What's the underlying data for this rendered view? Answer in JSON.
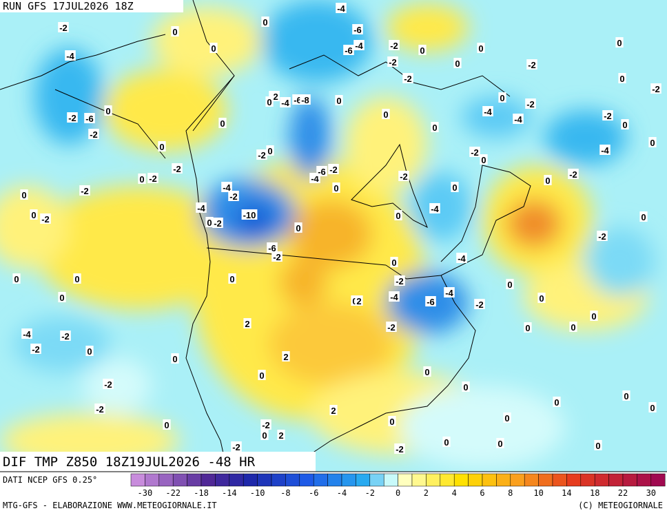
{
  "header": {
    "run": "RUN GFS 17JUL2026 18Z"
  },
  "map": {
    "title": "DIF TMP Z850 18Z19JUL2026 -48 HR",
    "contour_labels": [
      0,
      -4,
      -2,
      0,
      -6,
      0,
      -4,
      -6,
      -4,
      -2,
      0,
      0,
      0,
      -2,
      0,
      -2,
      -2,
      0,
      -2,
      -2,
      -4,
      -6,
      -8,
      0,
      0,
      0,
      -2,
      0,
      -2,
      -6,
      0,
      -4,
      -4,
      -2,
      0,
      0,
      0,
      -2,
      0,
      0,
      -2,
      0,
      -2,
      0,
      -4,
      -2,
      -2,
      0,
      -2,
      -4,
      -6,
      -2,
      -2,
      0,
      -2,
      0,
      0,
      0,
      -4,
      -2,
      -4,
      0,
      -2,
      -4,
      0,
      0,
      -2,
      -10,
      0,
      0,
      -2,
      -6,
      -2,
      -4,
      0,
      0,
      0,
      0,
      -2,
      0,
      0,
      0,
      2,
      -4,
      -6,
      -4,
      -2,
      0,
      0,
      2,
      -2,
      0,
      -4,
      -2,
      0,
      -2,
      0,
      2,
      0,
      0,
      0,
      -2,
      0,
      0,
      -2,
      0,
      0,
      2,
      0,
      0,
      -2,
      0,
      0,
      2,
      -2,
      0,
      0,
      0,
      -2
    ]
  },
  "legend": {
    "source": "DATI NCEP GFS 0.25°",
    "ticks": [
      -30,
      -22,
      -18,
      -14,
      -10,
      -8,
      -6,
      -4,
      -2,
      0,
      2,
      4,
      6,
      8,
      10,
      14,
      18,
      22,
      30
    ]
  },
  "footer": {
    "credit": "MTG-GFS - ELABORAZIONE WWW.METEOGIORNALE.IT",
    "copyright": "(C) METEOGIORNALE"
  }
}
